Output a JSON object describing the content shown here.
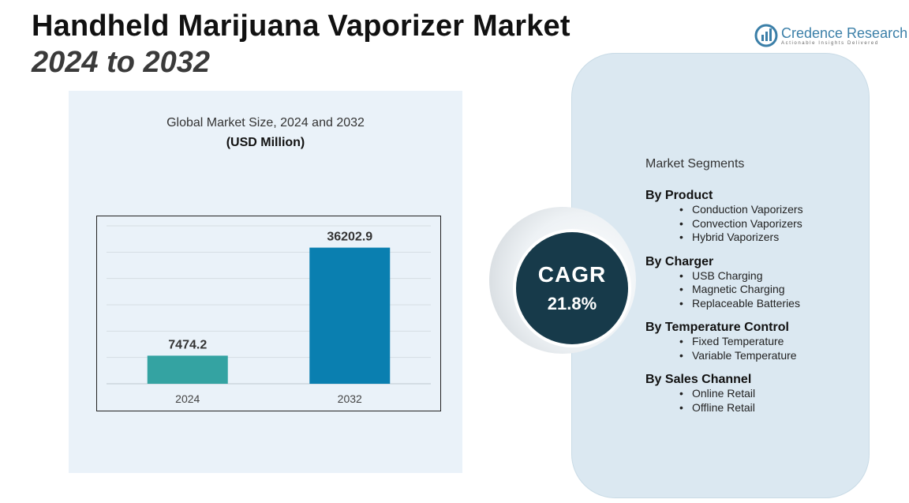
{
  "header": {
    "title": "Handheld Marijuana Vaporizer Market",
    "subtitle": "2024 to 2032"
  },
  "brand": {
    "name": "Credence Research",
    "tagline": "Actionable Insights Delivered",
    "icon": "credence-logo-icon",
    "color": "#3b7fa8"
  },
  "chart_data": {
    "type": "bar",
    "title": "Global Market Size, 2024 and 2032",
    "unit_label": "(USD Million)",
    "categories": [
      "2024",
      "2032"
    ],
    "values": [
      7474.2,
      36202.9
    ],
    "value_labels": [
      "7474.2",
      "36202.9"
    ],
    "colors": [
      "#34a3a2",
      "#0a7fb0"
    ],
    "ylim": [
      0,
      42000
    ],
    "grid": true,
    "legend": "none",
    "xlabel": "",
    "ylabel": ""
  },
  "cagr": {
    "label": "CAGR",
    "value": "21.8%",
    "color": "#173a4a"
  },
  "segments": {
    "heading": "Market Segments",
    "groups": [
      {
        "title": "By Product",
        "items": [
          "Conduction Vaporizers",
          "Convection Vaporizers",
          "Hybrid Vaporizers"
        ]
      },
      {
        "title": "By Charger",
        "items": [
          "USB Charging",
          "Magnetic Charging",
          "Replaceable Batteries"
        ]
      },
      {
        "title": "By Temperature Control",
        "items": [
          "Fixed Temperature",
          "Variable Temperature"
        ]
      },
      {
        "title": "By Sales Channel",
        "items": [
          "Online Retail",
          "Offline Retail"
        ]
      }
    ]
  }
}
